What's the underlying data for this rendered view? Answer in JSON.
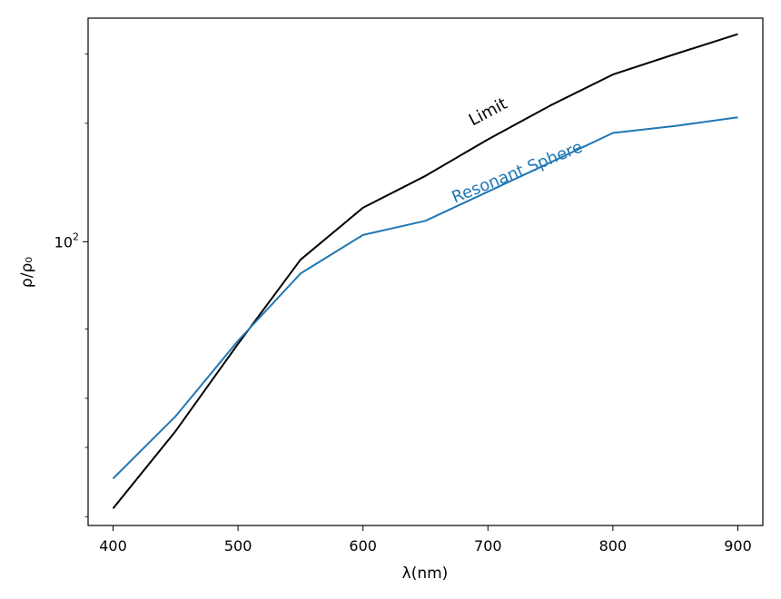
{
  "chart_data": {
    "type": "line",
    "title": "",
    "xlabel": "λ(nm)",
    "ylabel": "ρ/ρ₀",
    "xscale": "linear",
    "yscale": "log",
    "xlim": [
      380,
      920
    ],
    "ylim": [
      19,
      370
    ],
    "grid": false,
    "x_ticks": [
      400,
      500,
      600,
      700,
      800,
      900
    ],
    "y_major_ticks": [
      {
        "value": 100,
        "base": "10",
        "exponent": "2"
      }
    ],
    "y_minor_ticks": [
      20,
      30,
      40,
      60,
      200,
      300
    ],
    "x": [
      400,
      450,
      500,
      550,
      600,
      650,
      700,
      750,
      800,
      850,
      900
    ],
    "series": [
      {
        "name": "Limit",
        "color": "#000000",
        "values": [
          21,
          33,
          55,
          90,
          122,
          147,
          182,
          222,
          266,
          300,
          337
        ]
      },
      {
        "name": "Resonant Sphere",
        "color": "#1f77b4",
        "values": [
          25,
          36,
          56,
          83,
          104,
          113,
          134,
          159,
          189,
          197,
          207
        ]
      }
    ],
    "annotations": [
      {
        "text": "Limit",
        "series": "Limit",
        "x": 702,
        "y": 208,
        "rotation_deg": -28,
        "color": "#000000"
      },
      {
        "text": "Resonant Sphere",
        "series": "Resonant Sphere",
        "x": 725,
        "y": 146,
        "rotation_deg": -22,
        "color": "#1f77b4"
      }
    ]
  }
}
